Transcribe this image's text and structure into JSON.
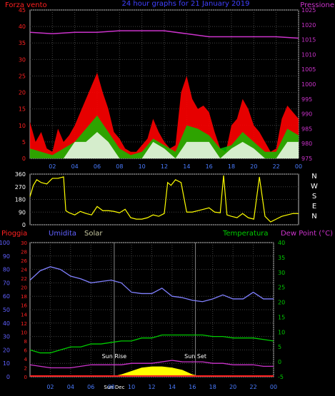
{
  "chart_data": [
    {
      "type": "line",
      "title": "24 hour graphs for 21 January 2019",
      "left_axis_label": "Forza vento",
      "right_axis_label": "Pressione",
      "left_ticks": [
        0,
        5,
        10,
        15,
        20,
        25,
        30,
        35,
        40,
        45
      ],
      "right_ticks": [
        975,
        980,
        985,
        990,
        995,
        1000,
        1005,
        1010,
        1015,
        1020,
        1025
      ],
      "x_ticks": [
        "02",
        "04",
        "06",
        "08",
        "10",
        "12",
        "14",
        "16",
        "18",
        "20",
        "22",
        "00"
      ],
      "ylim_left": [
        0,
        45
      ],
      "ylim_right": [
        975,
        1025
      ],
      "grid": true,
      "series": [
        {
          "color": "#cc33cc",
          "axis": "right",
          "x": [
            0,
            2,
            4,
            6,
            8,
            10,
            12,
            14,
            16,
            18,
            20,
            22,
            24
          ],
          "values": [
            1017.5,
            1017,
            1017.5,
            1017.5,
            1018,
            1018,
            1018,
            1017,
            1016,
            1016,
            1016,
            1016,
            1015.5
          ]
        },
        {
          "color": "#ff0000",
          "axis": "left",
          "x": [
            0,
            0.5,
            1,
            1.5,
            2,
            2.5,
            3,
            3.5,
            4,
            4.5,
            5,
            5.5,
            6,
            6.5,
            7,
            7.5,
            8,
            8.5,
            9,
            9.5,
            10,
            10.5,
            11,
            11.5,
            12,
            12.5,
            13,
            13.5,
            14,
            14.5,
            15,
            15.5,
            16,
            16.5,
            17,
            17.5,
            18,
            18.5,
            19,
            19.5,
            20,
            20.5,
            21,
            21.5,
            22,
            22.5,
            23,
            23.5,
            24
          ],
          "values": [
            11,
            5,
            8,
            3,
            2,
            9,
            5,
            7,
            10,
            14,
            18,
            22,
            26,
            20,
            15,
            8,
            6,
            3,
            2,
            2,
            4,
            6,
            12,
            8,
            5,
            3,
            4,
            20,
            25,
            18,
            15,
            16,
            14,
            8,
            3,
            2,
            10,
            12,
            18,
            15,
            10,
            8,
            5,
            2,
            3,
            12,
            16,
            14,
            12
          ]
        },
        {
          "color": "#00cc00",
          "axis": "left",
          "x": [
            0,
            1,
            2,
            3,
            4,
            5,
            6,
            7,
            8,
            9,
            10,
            11,
            12,
            13,
            14,
            15,
            16,
            17,
            18,
            19,
            20,
            21,
            22,
            23,
            24
          ],
          "values": [
            3,
            2,
            1,
            3,
            5,
            9,
            13,
            8,
            3,
            1,
            2,
            6,
            4,
            2,
            10,
            9,
            7,
            3,
            4,
            8,
            5,
            2,
            2,
            9,
            7
          ]
        },
        {
          "color": "#ffffff",
          "axis": "left",
          "x": [
            0,
            1,
            2,
            3,
            4,
            5,
            6,
            7,
            8,
            9,
            10,
            11,
            12,
            13,
            14,
            15,
            16,
            17,
            18,
            19,
            20,
            21,
            22,
            23,
            24
          ],
          "values": [
            0,
            0,
            0,
            0,
            5,
            5,
            8,
            5,
            0,
            0,
            0,
            5,
            3,
            0,
            5,
            5,
            5,
            0,
            3,
            5,
            3,
            0,
            0,
            5,
            5
          ]
        }
      ]
    },
    {
      "type": "line",
      "right_axis_label": "N W S E N",
      "left_ticks": [
        0,
        90,
        180,
        270,
        360
      ],
      "ylim": [
        0,
        360
      ],
      "series": [
        {
          "color": "#ffff00",
          "x": [
            0,
            0.3,
            0.6,
            1,
            1.5,
            2,
            2.5,
            3,
            3.2,
            3.5,
            4,
            4.5,
            5,
            5.5,
            6,
            6.5,
            7,
            7.5,
            8,
            8.5,
            9,
            9.5,
            10,
            10.5,
            11,
            11.5,
            12,
            12.3,
            12.6,
            13,
            13.5,
            14,
            14.5,
            15,
            15.5,
            16,
            16.5,
            17,
            17.3,
            17.6,
            18,
            18.5,
            19,
            19.5,
            20,
            20.5,
            21,
            21.5,
            22,
            22.5,
            23,
            23.5,
            24
          ],
          "values": [
            200,
            280,
            320,
            300,
            290,
            330,
            330,
            340,
            100,
            85,
            70,
            95,
            80,
            70,
            130,
            100,
            100,
            95,
            85,
            110,
            50,
            40,
            40,
            50,
            70,
            60,
            80,
            300,
            280,
            320,
            300,
            90,
            90,
            100,
            110,
            120,
            90,
            85,
            350,
            70,
            60,
            50,
            80,
            50,
            40,
            340,
            60,
            20,
            40,
            60,
            70,
            80,
            80
          ]
        }
      ]
    },
    {
      "type": "line",
      "labels": {
        "pioggia": "Pioggia",
        "umidita": "Umidita",
        "solar": "Solar",
        "temperatura": "Temperatura",
        "dewpoint": "Dew Point (°C)"
      },
      "left_ticks_pioggia": [
        0,
        10,
        20,
        30,
        40,
        50,
        60,
        70,
        80,
        90,
        100
      ],
      "left_ticks_inner": [
        0,
        2,
        4,
        6,
        8,
        10,
        12,
        14,
        16,
        18,
        20,
        22,
        24,
        26,
        28,
        30
      ],
      "right_ticks": [
        -5,
        0,
        5,
        10,
        15,
        20,
        25,
        30,
        35,
        40
      ],
      "x_ticks": [
        "02",
        "04",
        "06",
        "08",
        "10",
        "12",
        "14",
        "16",
        "18",
        "20",
        "22",
        "00"
      ],
      "annotations": [
        "Sun Rise",
        "Sun Set",
        "Sun Dec"
      ],
      "series": [
        {
          "name": "Umidita",
          "color": "#8080ff",
          "x": [
            0,
            1,
            2,
            3,
            4,
            5,
            6,
            7,
            8,
            9,
            10,
            11,
            12,
            13,
            14,
            15,
            16,
            17,
            18,
            19,
            20,
            21,
            22,
            23,
            24
          ],
          "values": [
            72,
            79,
            82,
            80,
            75,
            73,
            70,
            71,
            72,
            70,
            63,
            62,
            62,
            66,
            60,
            59,
            57,
            56,
            58,
            61,
            58,
            58,
            63,
            58,
            58
          ]
        },
        {
          "name": "Temperatura",
          "color": "#00cc00",
          "x": [
            0,
            1,
            2,
            3,
            4,
            5,
            6,
            7,
            8,
            9,
            10,
            11,
            12,
            13,
            14,
            15,
            16,
            17,
            18,
            19,
            20,
            21,
            22,
            23,
            24
          ],
          "values": [
            4,
            3,
            3,
            4,
            5,
            5,
            6,
            6,
            6.5,
            7,
            7,
            8,
            8,
            9,
            9,
            9,
            9,
            9,
            8.5,
            8.5,
            8,
            8,
            8,
            7.5,
            7
          ]
        },
        {
          "name": "Dew Point (°C)",
          "color": "#cc33cc",
          "x": [
            0,
            1,
            2,
            3,
            4,
            5,
            6,
            7,
            8,
            9,
            10,
            11,
            12,
            13,
            14,
            15,
            16,
            17,
            18,
            19,
            20,
            21,
            22,
            23,
            24
          ],
          "values": [
            -1,
            -1.5,
            -2,
            -2,
            -2,
            -1.5,
            -1,
            -1,
            -1,
            -1,
            -0.5,
            -0.5,
            -0.5,
            0,
            0.5,
            0,
            0,
            0,
            -0.5,
            -0.5,
            -1,
            -1,
            -1,
            -1.5,
            -1.5
          ]
        },
        {
          "name": "Solar",
          "color": "#ffff00",
          "x": [
            0,
            8,
            9,
            10,
            11,
            12,
            13,
            14,
            15,
            16,
            17,
            24
          ],
          "values": [
            0,
            0,
            2,
            5,
            8,
            9,
            9,
            8,
            6,
            2,
            0,
            0
          ]
        }
      ]
    }
  ]
}
